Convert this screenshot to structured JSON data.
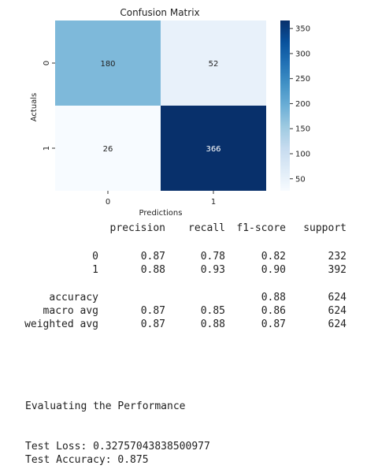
{
  "chart_data": {
    "type": "heatmap",
    "title": "Confusion Matrix",
    "xlabel": "Predictions",
    "ylabel": "Actuals",
    "x_tick_labels": [
      "0",
      "1"
    ],
    "y_tick_labels": [
      "0",
      "1"
    ],
    "values": [
      [
        180,
        52
      ],
      [
        26,
        366
      ]
    ],
    "colormap": "Blues",
    "vmin": 26,
    "vmax": 366,
    "colorbar_ticks": [
      50,
      100,
      150,
      200,
      250,
      300,
      350
    ],
    "colorbar_tick_labels": [
      "50",
      "100",
      "150",
      "200",
      "250",
      "300",
      "350"
    ]
  },
  "report": {
    "headers": [
      "precision",
      "recall",
      "f1-score",
      "support"
    ],
    "rows": [
      {
        "label": "0",
        "precision": "0.87",
        "recall": "0.78",
        "f1": "0.82",
        "support": "232"
      },
      {
        "label": "1",
        "precision": "0.88",
        "recall": "0.93",
        "f1": "0.90",
        "support": "392"
      },
      {
        "label": "accuracy",
        "precision": "",
        "recall": "",
        "f1": "0.88",
        "support": "624"
      },
      {
        "label": "macro avg",
        "precision": "0.87",
        "recall": "0.85",
        "f1": "0.86",
        "support": "624"
      },
      {
        "label": "weighted avg",
        "precision": "0.87",
        "recall": "0.88",
        "f1": "0.87",
        "support": "624"
      }
    ]
  },
  "log": {
    "heading": "Evaluating the Performance",
    "test_loss": "Test Loss: 0.32757043838500977",
    "test_accuracy": "Test Accuracy: 0.875"
  }
}
